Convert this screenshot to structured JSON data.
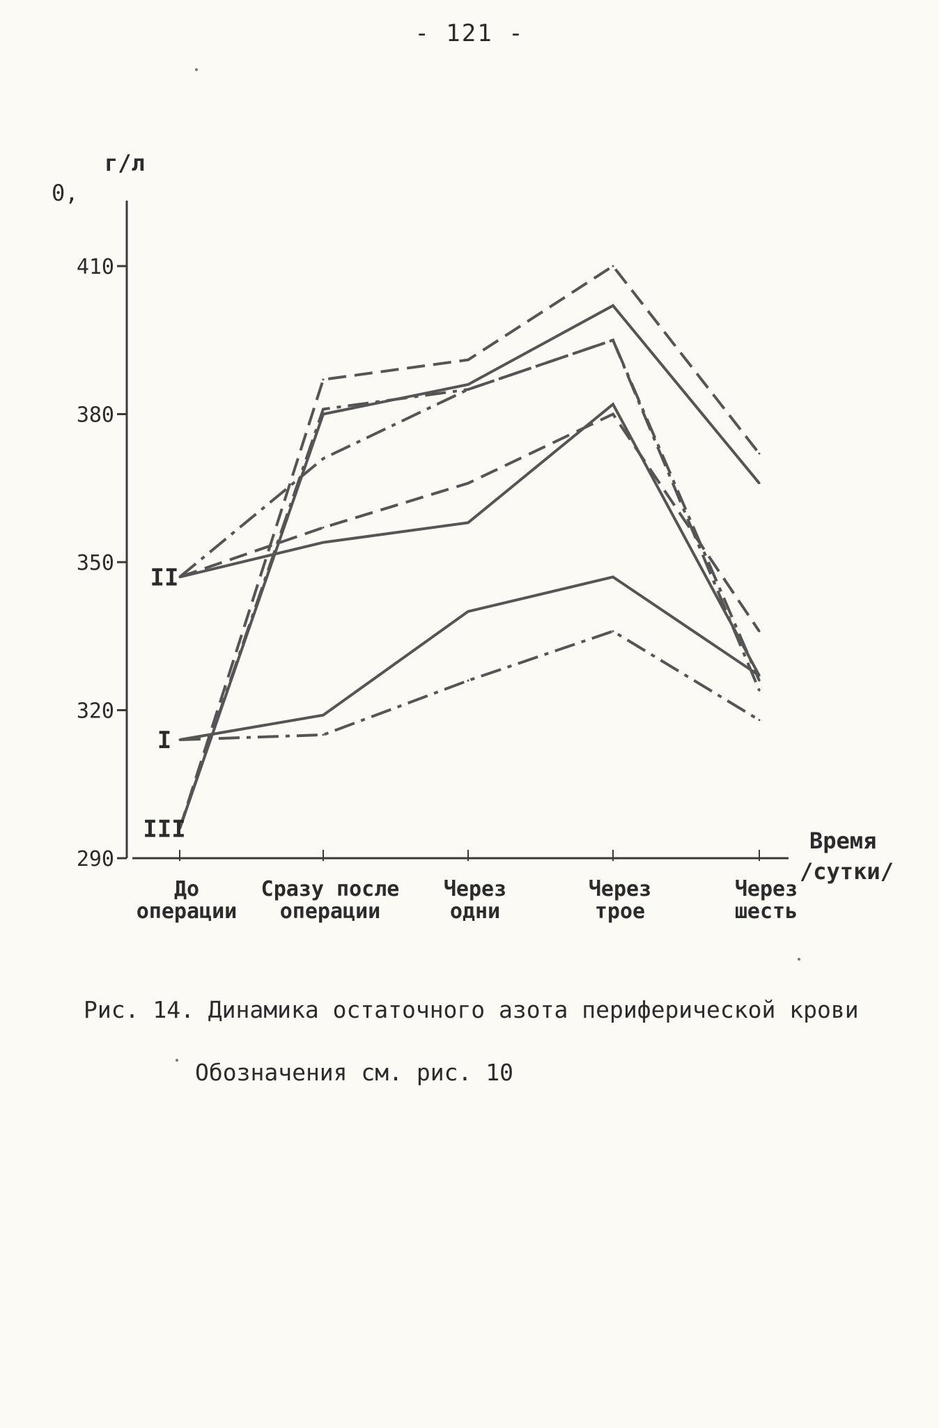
{
  "page": {
    "number": "- 121 -",
    "caption": "Рис. 14. Динамика остаточного азота периферической крови",
    "caption_note": "Обозначения см. рис. 10"
  },
  "chart_data": {
    "type": "line",
    "ylabel": "г/л",
    "ylabel_prefix": "0,",
    "xlabel": [
      "Время",
      "/сутки/"
    ],
    "yticks": [
      290,
      320,
      350,
      380,
      410
    ],
    "ylim": [
      290,
      420
    ],
    "categories": [
      [
        "До",
        "операции"
      ],
      [
        "Сразу после",
        "операции"
      ],
      [
        "Через",
        "одни"
      ],
      [
        "Через",
        "трое"
      ],
      [
        "Через",
        "шесть"
      ]
    ],
    "group_labels": [
      {
        "text": "II",
        "y": 347
      },
      {
        "text": "I",
        "y": 314
      },
      {
        "text": "III",
        "y": 296
      }
    ],
    "grid": false,
    "series": [
      {
        "group": "III",
        "style": "dashed",
        "values": [
          296,
          387,
          391,
          410,
          372
        ]
      },
      {
        "group": "III",
        "style": "solid",
        "values": [
          296,
          380,
          386,
          402,
          366
        ]
      },
      {
        "group": "III",
        "style": "dashdot",
        "values": [
          296,
          381,
          385,
          395,
          324
        ]
      },
      {
        "group": "II",
        "style": "dashed",
        "values": [
          347,
          357,
          366,
          380,
          336
        ]
      },
      {
        "group": "II",
        "style": "solid",
        "values": [
          347,
          354,
          358,
          382,
          327
        ]
      },
      {
        "group": "II",
        "style": "dashdot",
        "values": [
          347,
          371,
          385,
          395,
          326
        ]
      },
      {
        "group": "I",
        "style": "solid",
        "values": [
          314,
          319,
          340,
          347,
          327
        ]
      },
      {
        "group": "I",
        "style": "dashdot",
        "values": [
          314,
          315,
          326,
          336,
          318
        ]
      }
    ],
    "line_color": "#555555",
    "text_color": "#2b2b2b",
    "background": "#fbfaf5"
  }
}
